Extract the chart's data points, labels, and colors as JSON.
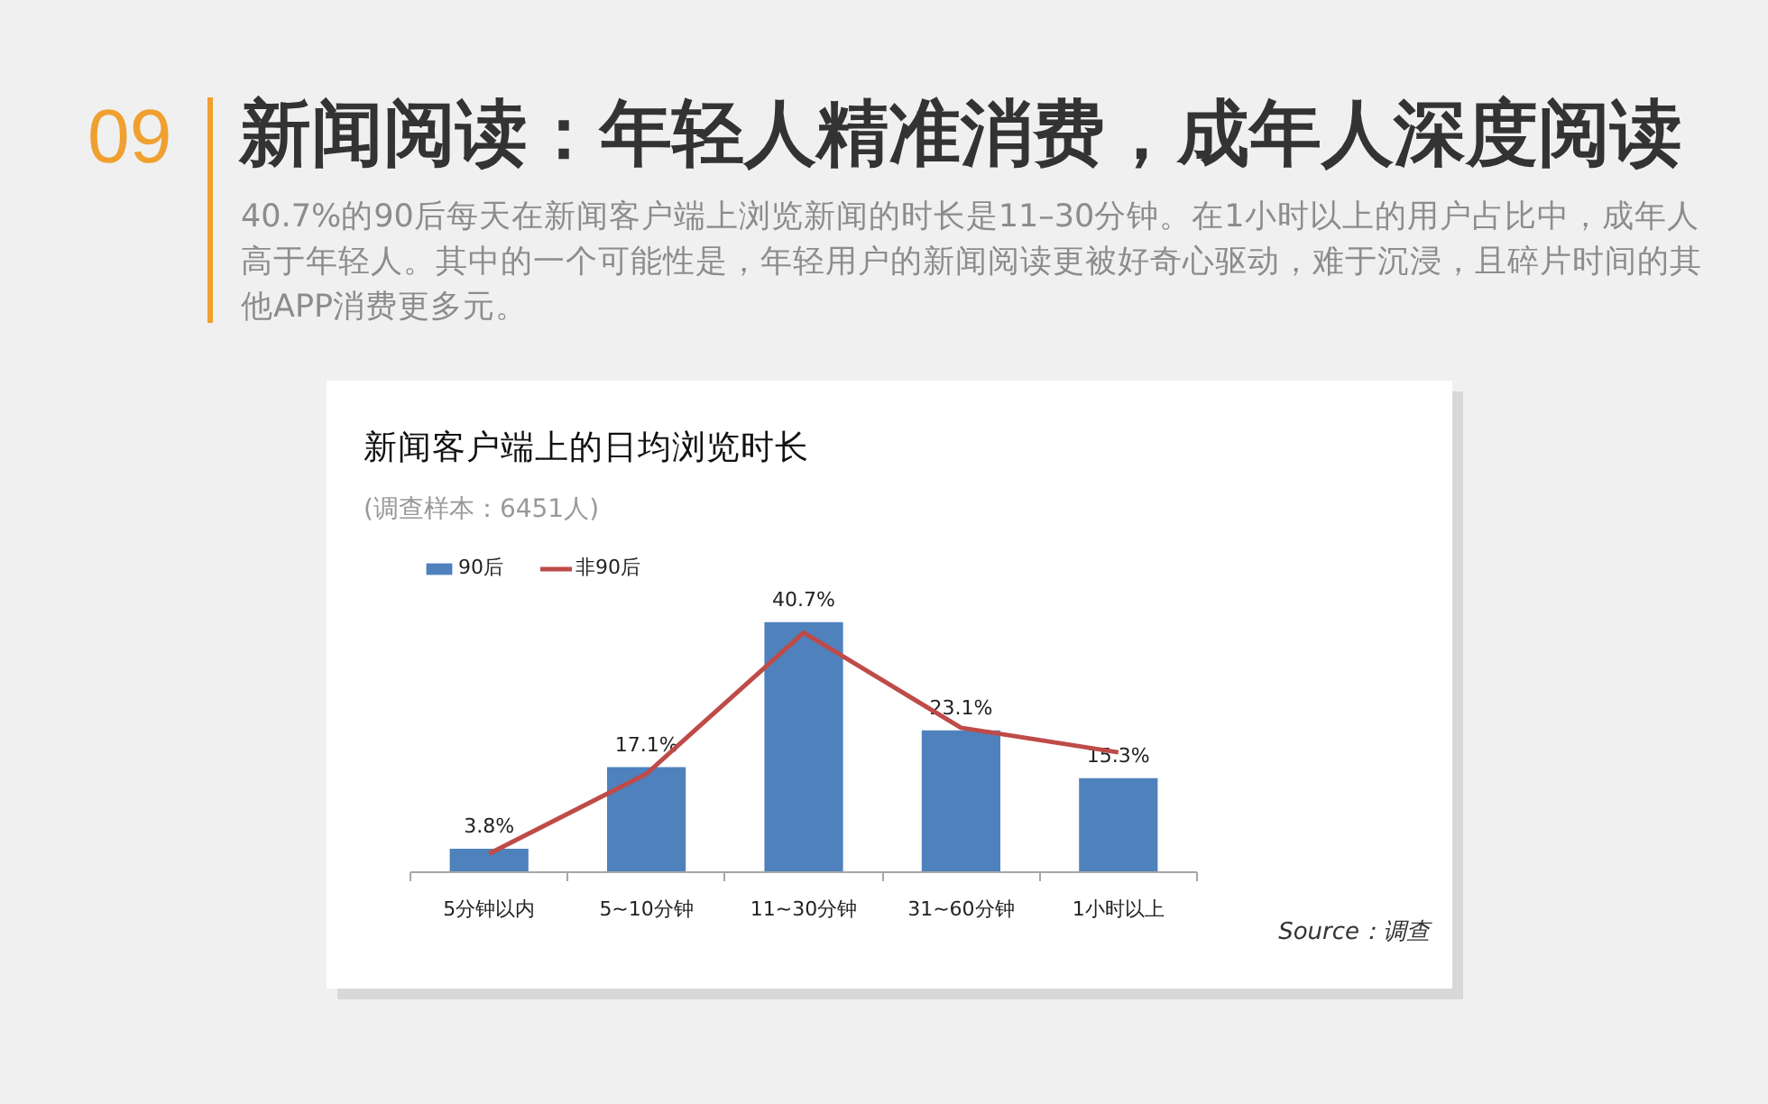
{
  "chart_data": {
    "type": "bar",
    "title": "新闻客户端上的日均浏览时长",
    "subtitle": "(调查样本：6451人)",
    "annotations": [
      "09",
      "新闻阅读：年轻人精准消费，成年人深度阅读",
      "40.7%的90后每天在新闻客户端上浏览新闻的时长是11–30分钟。在1小时以上的用户占比中，成年人高于年轻人。其中的一个可能性是，年轻用户的新闻阅读更被好奇心驱动，难于沉浸，且碎片时间的其他APP消费更多元。",
      "Source：调查"
    ],
    "categories": [
      "5分钟以内",
      "5~10分钟",
      "11~30分钟",
      "31~60分钟",
      "1小时以上"
    ],
    "series": [
      {
        "name": "90后",
        "color": "#4f81bd",
        "values": [
          3.8,
          17.1,
          40.7,
          23.1,
          15.3
        ],
        "value_labels": [
          "3.8%",
          "17.1%",
          "40.7%",
          "23.1%",
          "15.3%"
        ]
      },
      {
        "name": "非90后",
        "type": "line",
        "color": "#be4b48",
        "values": [
          3,
          16,
          39,
          23.5,
          19.5
        ]
      }
    ],
    "legend": "top left",
    "grid": false,
    "tick_labels": "x"
  }
}
